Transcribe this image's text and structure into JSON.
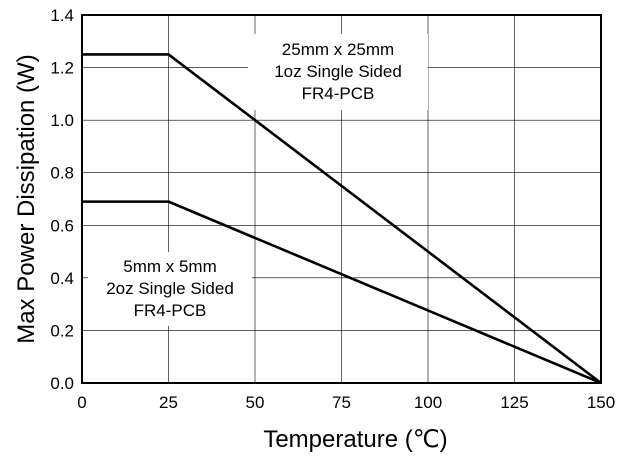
{
  "chart_data": {
    "type": "line",
    "xlabel": "Temperature (℃)",
    "ylabel": "Max Power Dissipation (W)",
    "xlim": [
      0,
      150
    ],
    "ylim": [
      0,
      1.4
    ],
    "xticks": [
      "0",
      "25",
      "50",
      "75",
      "100",
      "125",
      "150"
    ],
    "yticks": [
      "0.0",
      "0.2",
      "0.4",
      "0.6",
      "0.8",
      "1.0",
      "1.2",
      "1.4"
    ],
    "grid": true,
    "series": [
      {
        "x": [
          0,
          25,
          150
        ],
        "y": [
          1.25,
          1.25,
          0.0
        ],
        "annotation": [
          "25mm x 25mm",
          "1oz Single Sided",
          "FR4-PCB"
        ]
      },
      {
        "x": [
          0,
          25,
          150
        ],
        "y": [
          0.69,
          0.69,
          0.0
        ],
        "annotation": [
          "5mm x 5mm",
          "2oz Single Sided",
          "FR4-PCB"
        ]
      }
    ],
    "colors": {
      "line": "#000000",
      "grid": "#000000"
    }
  }
}
